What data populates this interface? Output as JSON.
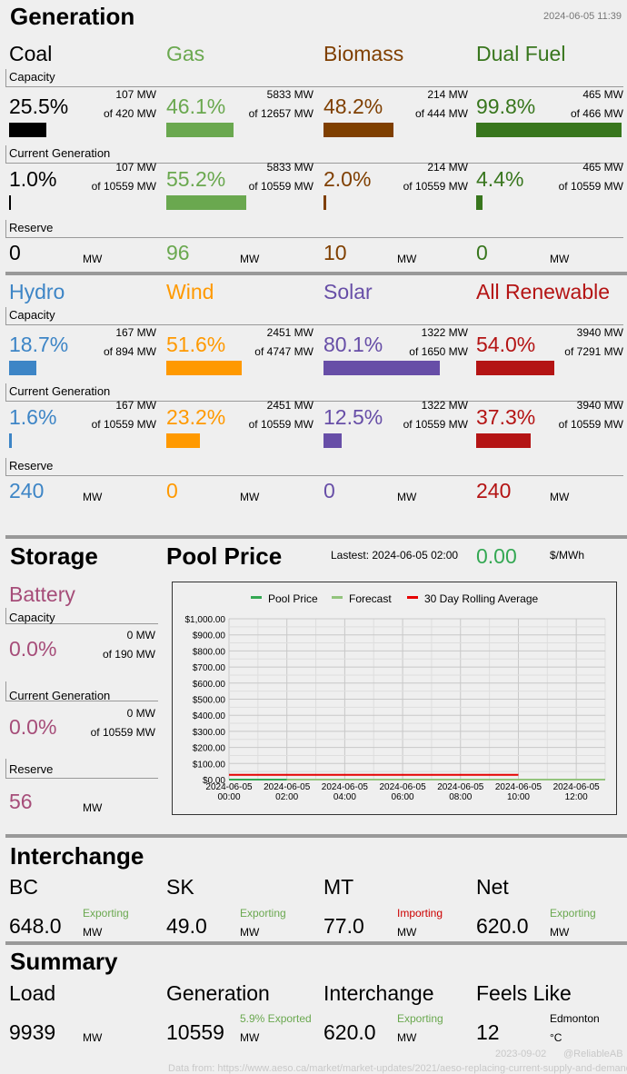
{
  "generation": {
    "title": "Generation",
    "timestamp": "2024-06-05 11:39",
    "labels": {
      "capacity": "Capacity",
      "current": "Current Generation",
      "reserve": "Reserve"
    },
    "units": {
      "mw": "MW"
    },
    "row1": [
      {
        "name": "Coal",
        "color": "#000000",
        "cap_pct": "25.5%",
        "cap_mw": "107 MW",
        "cap_of": "of 420 MW",
        "cap_frac": 0.255,
        "cur_pct": "1.0%",
        "cur_mw": "107 MW",
        "cur_of": "of 10559 MW",
        "cur_frac": 0.01,
        "reserve": "0"
      },
      {
        "name": "Gas",
        "color": "#6aa84f",
        "cap_pct": "46.1%",
        "cap_mw": "5833 MW",
        "cap_of": "of 12657 MW",
        "cap_frac": 0.461,
        "cur_pct": "55.2%",
        "cur_mw": "5833 MW",
        "cur_of": "of 10559 MW",
        "cur_frac": 0.552,
        "reserve": "96"
      },
      {
        "name": "Biomass",
        "color": "#7f3f00",
        "cap_pct": "48.2%",
        "cap_mw": "214 MW",
        "cap_of": "of 444 MW",
        "cap_frac": 0.482,
        "cur_pct": "2.0%",
        "cur_mw": "214 MW",
        "cur_of": "of 10559 MW",
        "cur_frac": 0.02,
        "reserve": "10"
      },
      {
        "name": "Dual Fuel",
        "color": "#38761d",
        "cap_pct": "99.8%",
        "cap_mw": "465 MW",
        "cap_of": "of 466 MW",
        "cap_frac": 0.998,
        "cur_pct": "4.4%",
        "cur_mw": "465 MW",
        "cur_of": "of 10559 MW",
        "cur_frac": 0.044,
        "reserve": "0"
      }
    ],
    "row2": [
      {
        "name": "Hydro",
        "color": "#3d85c6",
        "cap_pct": "18.7%",
        "cap_mw": "167 MW",
        "cap_of": "of 894 MW",
        "cap_frac": 0.187,
        "cur_pct": "1.6%",
        "cur_mw": "167 MW",
        "cur_of": "of 10559 MW",
        "cur_frac": 0.016,
        "reserve": "240"
      },
      {
        "name": "Wind",
        "color": "#ff9900",
        "cap_pct": "51.6%",
        "cap_mw": "2451 MW",
        "cap_of": "of 4747 MW",
        "cap_frac": 0.516,
        "cur_pct": "23.2%",
        "cur_mw": "2451 MW",
        "cur_of": "of 10559 MW",
        "cur_frac": 0.232,
        "reserve": "0"
      },
      {
        "name": "Solar",
        "color": "#674ea7",
        "cap_pct": "80.1%",
        "cap_mw": "1322 MW",
        "cap_of": "of 1650 MW",
        "cap_frac": 0.801,
        "cur_pct": "12.5%",
        "cur_mw": "1322 MW",
        "cur_of": "of 10559 MW",
        "cur_frac": 0.125,
        "reserve": "0"
      },
      {
        "name": "All Renewable",
        "color": "#b41414",
        "cap_pct": "54.0%",
        "cap_mw": "3940 MW",
        "cap_of": "of 7291 MW",
        "cap_frac": 0.54,
        "cur_pct": "37.3%",
        "cur_mw": "3940 MW",
        "cur_of": "of 10559 MW",
        "cur_frac": 0.373,
        "reserve": "240"
      }
    ]
  },
  "storage": {
    "title": "Storage",
    "battery": {
      "name": "Battery",
      "color": "#a64d79",
      "cap_pct": "0.0%",
      "cap_mw": "0 MW",
      "cap_of": "of 190 MW",
      "cur_pct": "0.0%",
      "cur_mw": "0 MW",
      "cur_of": "of 10559 MW",
      "reserve": "56"
    }
  },
  "pool_price": {
    "title": "Pool Price",
    "latest_label": "Lastest: 2024-06-05 02:00",
    "value": "0.00",
    "unit": "$/MWh",
    "value_color": "#34a853"
  },
  "chart_data": {
    "type": "line",
    "title": "",
    "xlabel": "",
    "ylabel": "",
    "ylim": [
      0,
      1000
    ],
    "yticks": [
      "$0.00",
      "$100.00",
      "$200.00",
      "$300.00",
      "$400.00",
      "$500.00",
      "$600.00",
      "$700.00",
      "$800.00",
      "$900.00",
      "$1,000.00"
    ],
    "xticks": [
      [
        "2024-06-05",
        "00:00"
      ],
      [
        "2024-06-05",
        "02:00"
      ],
      [
        "2024-06-05",
        "04:00"
      ],
      [
        "2024-06-05",
        "06:00"
      ],
      [
        "2024-06-05",
        "08:00"
      ],
      [
        "2024-06-05",
        "10:00"
      ],
      [
        "2024-06-05",
        "12:00"
      ]
    ],
    "x_range_hours": [
      0,
      13
    ],
    "legend_position": "top",
    "grid": true,
    "series": [
      {
        "name": "Pool Price",
        "color": "#34a853",
        "x": [
          0,
          2
        ],
        "y": [
          0,
          0
        ]
      },
      {
        "name": "Forecast",
        "color": "#93c47d",
        "x": [
          2,
          13
        ],
        "y": [
          0,
          0
        ]
      },
      {
        "name": "30 Day Rolling Average",
        "color": "#e60000",
        "x": [
          0,
          10
        ],
        "y": [
          30,
          30
        ]
      }
    ]
  },
  "interchange": {
    "title": "Interchange",
    "items": [
      {
        "name": "BC",
        "value": "648.0",
        "status": "Exporting",
        "status_color": "#6aa84f"
      },
      {
        "name": "SK",
        "value": "49.0",
        "status": "Exporting",
        "status_color": "#6aa84f"
      },
      {
        "name": "MT",
        "value": "77.0",
        "status": "Importing",
        "status_color": "#cc0000"
      },
      {
        "name": "Net",
        "value": "620.0",
        "status": "Exporting",
        "status_color": "#6aa84f"
      }
    ]
  },
  "summary": {
    "title": "Summary",
    "load": {
      "label": "Load",
      "value": "9939",
      "unit": "MW"
    },
    "generation": {
      "label": "Generation",
      "value": "10559",
      "unit": "MW",
      "note": "5.9% Exported",
      "note_color": "#6aa84f"
    },
    "interchange": {
      "label": "Interchange",
      "value": "620.0",
      "unit": "MW",
      "note": "Exporting",
      "note_color": "#6aa84f"
    },
    "feels_like": {
      "label": "Feels Like",
      "value": "12",
      "location": "Edmonton",
      "unit": "°C"
    }
  },
  "footer": {
    "date": "2023-09-02",
    "handle": "@ReliableAB",
    "source": "Data from: https://www.aeso.ca/market/market-updates/2021/aeso-replacing-current-supply-and-demand-report-..."
  }
}
